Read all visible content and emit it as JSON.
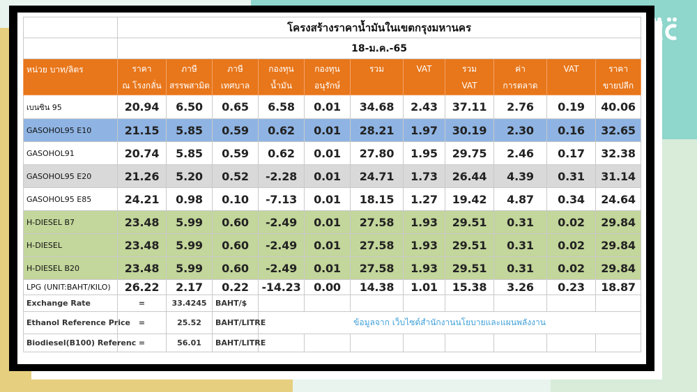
{
  "title": "โครงสร้างราคาน้ำมันในเขตกรุงมหานคร",
  "date": "18-ม.ค.-65",
  "colors": {
    "header": "#e8761a",
    "row_blue": "#8fb4e3",
    "row_grey": "#d9d9d9",
    "row_green": "#c3d69b",
    "frame": "#000000",
    "source_text": "#3fa0d8"
  },
  "header": {
    "unit": "หน่วย บาท/ลิตร",
    "columns": [
      {
        "line1": "ราคา",
        "line2": "ณ โรงกลั่น"
      },
      {
        "line1": "ภาษี",
        "line2": "สรรพสามิต"
      },
      {
        "line1": "ภาษี",
        "line2": "เทศบาล"
      },
      {
        "line1": "กองทุน",
        "line2": "น้ำมัน"
      },
      {
        "line1": "กองทุน",
        "line2": "อนุรักษ์"
      },
      {
        "line1": "รวม",
        "line2": ""
      },
      {
        "line1": "VAT",
        "line2": ""
      },
      {
        "line1": "รวม",
        "line2": "VAT"
      },
      {
        "line1": "ค่า",
        "line2": "การตลาด"
      },
      {
        "line1": "VAT",
        "line2": ""
      },
      {
        "line1": "ราคา",
        "line2": "ขายปลีก"
      }
    ]
  },
  "rows": [
    {
      "name": "เบนซิน 95",
      "style": "white",
      "values": [
        "20.94",
        "6.50",
        "0.65",
        "6.58",
        "0.01",
        "34.68",
        "2.43",
        "37.11",
        "2.76",
        "0.19",
        "40.06"
      ]
    },
    {
      "name": "GASOHOL95 E10",
      "style": "blue",
      "values": [
        "21.15",
        "5.85",
        "0.59",
        "0.62",
        "0.01",
        "28.21",
        "1.97",
        "30.19",
        "2.30",
        "0.16",
        "32.65"
      ]
    },
    {
      "name": "GASOHOL91",
      "style": "white",
      "values": [
        "20.74",
        "5.85",
        "0.59",
        "0.62",
        "0.01",
        "27.80",
        "1.95",
        "29.75",
        "2.46",
        "0.17",
        "32.38"
      ]
    },
    {
      "name": "GASOHOL95 E20",
      "style": "grey",
      "values": [
        "21.26",
        "5.20",
        "0.52",
        "-2.28",
        "0.01",
        "24.71",
        "1.73",
        "26.44",
        "4.39",
        "0.31",
        "31.14"
      ]
    },
    {
      "name": "GASOHOL95 E85",
      "style": "white",
      "values": [
        "24.21",
        "0.98",
        "0.10",
        "-7.13",
        "0.01",
        "18.15",
        "1.27",
        "19.42",
        "4.87",
        "0.34",
        "24.64"
      ]
    },
    {
      "name": "H-DIESEL B7",
      "style": "green",
      "values": [
        "23.48",
        "5.99",
        "0.60",
        "-2.49",
        "0.01",
        "27.58",
        "1.93",
        "29.51",
        "0.31",
        "0.02",
        "29.84"
      ]
    },
    {
      "name": "H-DIESEL",
      "style": "green",
      "values": [
        "23.48",
        "5.99",
        "0.60",
        "-2.49",
        "0.01",
        "27.58",
        "1.93",
        "29.51",
        "0.31",
        "0.02",
        "29.84"
      ]
    },
    {
      "name": "H-DIESEL B20",
      "style": "green",
      "values": [
        "23.48",
        "5.99",
        "0.60",
        "-2.49",
        "0.01",
        "27.58",
        "1.93",
        "29.51",
        "0.31",
        "0.02",
        "29.84"
      ]
    },
    {
      "name": "LPG (UNIT:BAHT/KILO)",
      "style": "white",
      "values": [
        "26.22",
        "2.17",
        "0.22",
        "-14.23",
        "0.00",
        "14.38",
        "1.01",
        "15.38",
        "3.26",
        "0.23",
        "18.87"
      ]
    }
  ],
  "footer": {
    "exchange_rate": {
      "label": "Exchange Rate",
      "eq": "=",
      "value": "33.4245",
      "unit": "BAHT/$"
    },
    "ethanol": {
      "label": "Ethanol Reference Price",
      "eq": "=",
      "value": "25.52",
      "unit": "BAHT/LITRE"
    },
    "biodiesel": {
      "label": "Biodiesel(B100) Referenc",
      "eq": "=",
      "value": "56.01",
      "unit": "BAHT/LITRE"
    },
    "source": "ข้อมูลจาก เว็บไซต์สำนักงานนโยบายและแผนพลังงาน"
  }
}
